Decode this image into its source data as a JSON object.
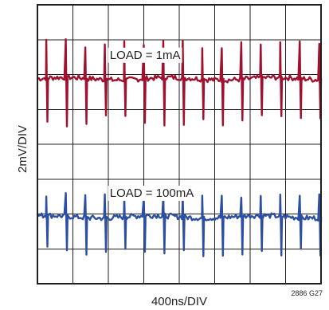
{
  "chart_data": {
    "type": "line",
    "xlabel": "400ns/DIV",
    "ylabel": "2mV/DIV",
    "figure_code": "2886 G27",
    "grid": true,
    "divisions": {
      "x": 8,
      "y": 8
    },
    "series": [
      {
        "name": "LOAD = 1mA",
        "color": "#a0102f",
        "baseline_div": 5.88,
        "ripple_mV": 0.3,
        "spike_period_div": 0.55,
        "spike_first_div": 0.25,
        "spike_up_mV": 2.0,
        "spike_down_mV": 2.4
      },
      {
        "name": "LOAD = 100mA",
        "color": "#2d4fa3",
        "baseline_div": 1.92,
        "ripple_mV": 0.3,
        "spike_period_div": 0.55,
        "spike_first_div": 0.25,
        "spike_up_mV": 1.2,
        "spike_down_mV": 2.0
      }
    ]
  }
}
